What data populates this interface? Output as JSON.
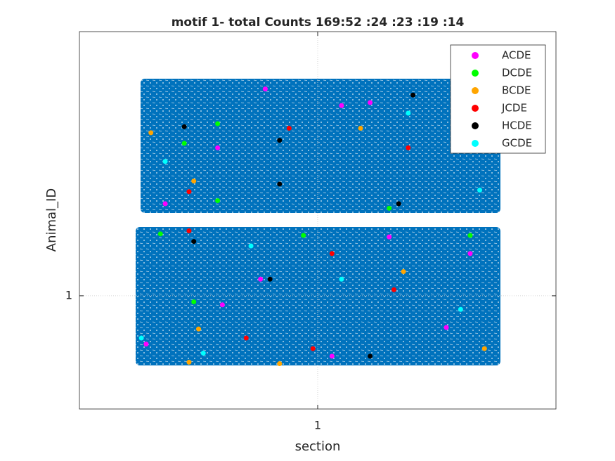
{
  "chart_data": {
    "type": "scatter",
    "title": "motif 1- total Counts 169:52 :24 :23 :19 :14",
    "xlabel": "section",
    "ylabel": "Animal_ID",
    "xlim": [
      0.5,
      1.5
    ],
    "ylim": [
      0.25,
      2.75
    ],
    "xticks": [
      1
    ],
    "yticks": [
      1
    ],
    "grid": true,
    "legend": "northeast",
    "series": [
      {
        "name": "ACDE",
        "color": "#ff00ff",
        "x": [
          0.89,
          1.11,
          0.79,
          0.68,
          1.05,
          0.88,
          0.8,
          1.15,
          1.27,
          1.03,
          1.32,
          0.64
        ],
        "values": [
          2.37,
          2.28,
          1.98,
          1.61,
          2.26,
          1.11,
          0.94,
          1.39,
          0.79,
          0.6,
          1.28,
          0.68
        ]
      },
      {
        "name": "DCDE",
        "color": "#00ff00",
        "x": [
          0.79,
          0.72,
          0.79,
          0.67,
          0.97,
          0.74,
          1.32,
          1.15
        ],
        "values": [
          2.14,
          2.01,
          1.63,
          1.41,
          1.4,
          0.96,
          1.4,
          1.58
        ]
      },
      {
        "name": "BCDE",
        "color": "#ffa500",
        "x": [
          0.65,
          0.74,
          1.09,
          1.18,
          0.75,
          0.73,
          0.92,
          1.35
        ],
        "values": [
          2.08,
          1.76,
          2.11,
          1.16,
          0.78,
          0.56,
          0.55,
          0.65
        ]
      },
      {
        "name": "JCDE",
        "color": "#ff0000",
        "x": [
          0.94,
          1.19,
          0.73,
          1.03,
          1.16,
          0.85,
          0.99,
          0.73
        ],
        "values": [
          2.11,
          1.98,
          1.69,
          1.28,
          1.04,
          0.72,
          0.65,
          1.43
        ]
      },
      {
        "name": "HCDE",
        "color": "#000000",
        "x": [
          0.72,
          0.92,
          0.92,
          1.2,
          0.9,
          1.11,
          0.74,
          1.17
        ],
        "values": [
          2.12,
          2.03,
          1.74,
          2.33,
          1.11,
          0.6,
          1.36,
          1.61
        ]
      },
      {
        "name": "GCDE",
        "color": "#00ffff",
        "x": [
          1.19,
          1.34,
          1.05,
          1.3,
          0.63,
          0.76,
          0.86,
          0.68
        ],
        "values": [
          2.21,
          1.7,
          1.11,
          0.91,
          0.72,
          0.62,
          1.33,
          1.89
        ]
      }
    ]
  }
}
